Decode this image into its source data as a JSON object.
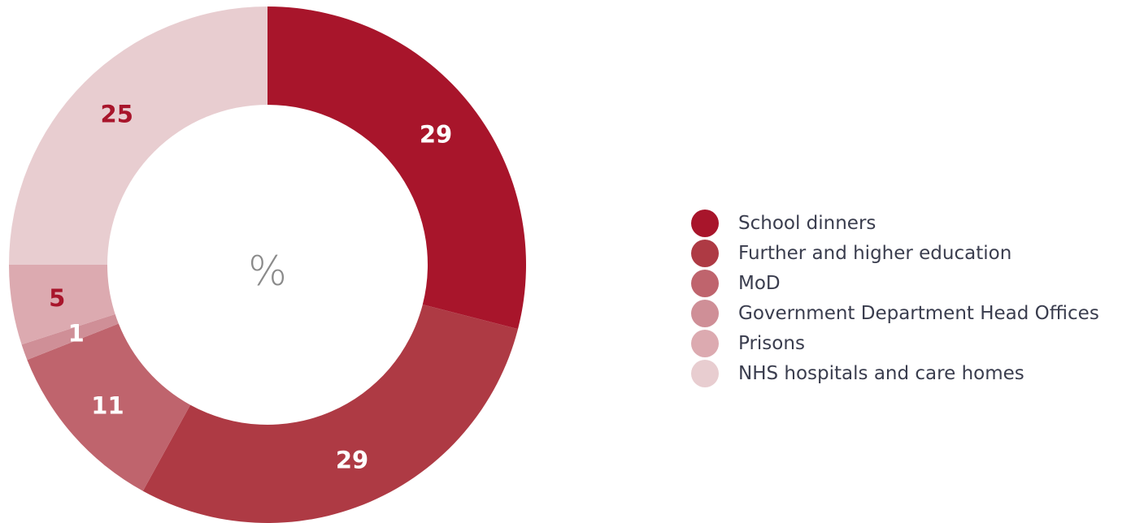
{
  "chart_data": {
    "type": "pie",
    "center_label": "%",
    "legend_position": "right",
    "slices": [
      {
        "name": "School dinners",
        "value": 29,
        "color": "#a8152b",
        "label_color": "#ffffff"
      },
      {
        "name": "Further and higher education",
        "value": 29,
        "color": "#ae3a44",
        "label_color": "#ffffff"
      },
      {
        "name": "MoD",
        "value": 11,
        "color": "#bf646d",
        "label_color": "#ffffff"
      },
      {
        "name": "Government Department Head Offices",
        "value": 1,
        "color": "#cf8f97",
        "label_color": "#ffffff"
      },
      {
        "name": "Prisons",
        "value": 5,
        "color": "#dcaab0",
        "label_color": "#a8152b"
      },
      {
        "name": "NHS hospitals and care homes",
        "value": 25,
        "color": "#e8cdd0",
        "label_color": "#a8152b"
      }
    ]
  }
}
